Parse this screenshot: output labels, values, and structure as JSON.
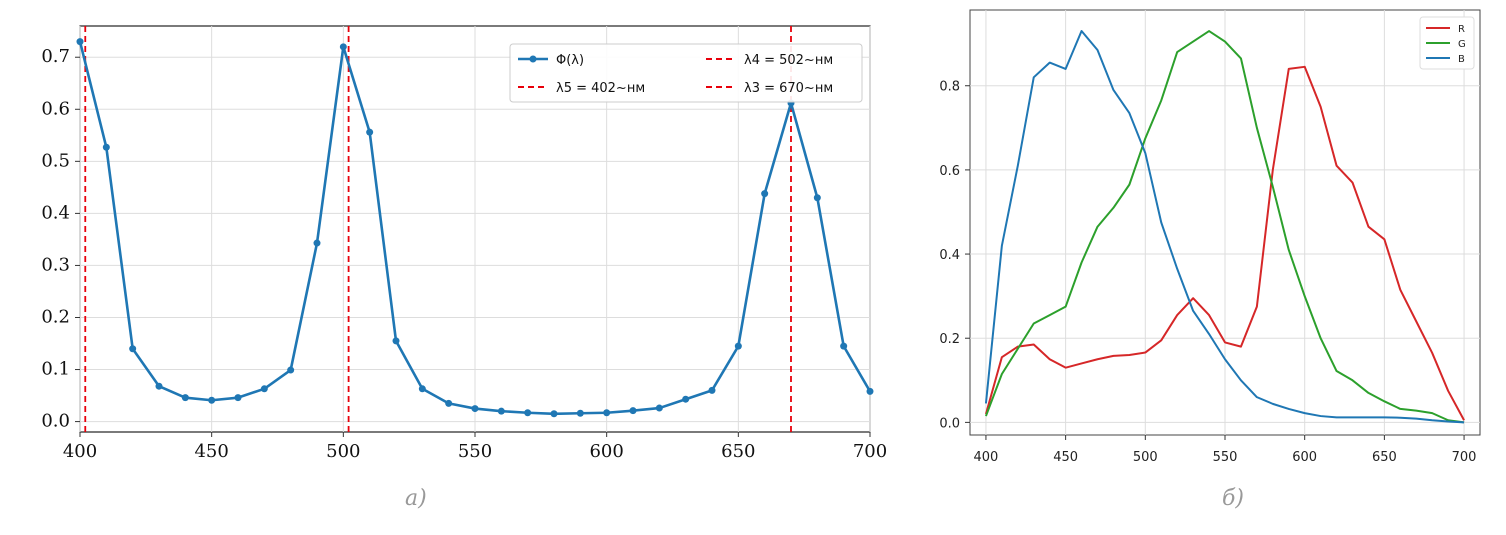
{
  "chart_data": [
    {
      "type": "line",
      "caption": "а)",
      "xlim": [
        400,
        700
      ],
      "ylim": [
        -0.02,
        0.76
      ],
      "x_ticks": [
        400,
        450,
        500,
        550,
        600,
        650,
        700
      ],
      "y_ticks": [
        0.0,
        0.1,
        0.2,
        0.3,
        0.4,
        0.5,
        0.6,
        0.7
      ],
      "grid": true,
      "legend_position": "top-right",
      "series": [
        {
          "name": "Φ(λ)",
          "color": "#1f77b4",
          "x": [
            400,
            410,
            420,
            430,
            440,
            450,
            460,
            470,
            480,
            490,
            500,
            510,
            520,
            530,
            540,
            550,
            560,
            570,
            580,
            590,
            600,
            610,
            620,
            630,
            640,
            650,
            660,
            670,
            680,
            690,
            700
          ],
          "y": [
            0.73,
            0.527,
            0.14,
            0.068,
            0.046,
            0.041,
            0.046,
            0.063,
            0.099,
            0.343,
            0.72,
            0.556,
            0.155,
            0.063,
            0.035,
            0.025,
            0.02,
            0.017,
            0.015,
            0.016,
            0.017,
            0.021,
            0.026,
            0.043,
            0.06,
            0.145,
            0.438,
            0.612,
            0.43,
            0.145,
            0.058
          ]
        }
      ],
      "vlines": [
        {
          "x": 402,
          "label": "λ5 = 402~нм",
          "color": "#e8000b"
        },
        {
          "x": 502,
          "label": "λ4 = 502~нм",
          "color": "#e8000b"
        },
        {
          "x": 670,
          "label": "λ3 = 670~нм",
          "color": "#e8000b"
        }
      ]
    },
    {
      "type": "line",
      "caption": "б)",
      "xlim": [
        390,
        710
      ],
      "ylim": [
        -0.03,
        0.98
      ],
      "x_ticks": [
        400,
        450,
        500,
        550,
        600,
        650,
        700
      ],
      "y_ticks": [
        0.0,
        0.2,
        0.4,
        0.6,
        0.8
      ],
      "grid": true,
      "legend_position": "top-right",
      "series": [
        {
          "name": "R",
          "color": "#d62728",
          "x": [
            400,
            410,
            420,
            430,
            440,
            450,
            460,
            470,
            480,
            490,
            500,
            510,
            520,
            530,
            540,
            550,
            560,
            570,
            580,
            590,
            600,
            610,
            620,
            630,
            640,
            650,
            660,
            670,
            680,
            690,
            700
          ],
          "y": [
            0.02,
            0.155,
            0.18,
            0.185,
            0.15,
            0.13,
            0.14,
            0.15,
            0.158,
            0.16,
            0.166,
            0.195,
            0.255,
            0.295,
            0.255,
            0.19,
            0.18,
            0.275,
            0.6,
            0.84,
            0.845,
            0.75,
            0.61,
            0.57,
            0.465,
            0.435,
            0.315,
            0.24,
            0.165,
            0.075,
            0.005
          ]
        },
        {
          "name": "G",
          "color": "#2ca02c",
          "x": [
            400,
            410,
            420,
            430,
            440,
            450,
            460,
            470,
            480,
            490,
            500,
            510,
            520,
            530,
            540,
            550,
            560,
            570,
            580,
            590,
            600,
            610,
            620,
            630,
            640,
            650,
            660,
            670,
            680,
            690,
            700
          ],
          "y": [
            0.015,
            0.115,
            0.175,
            0.235,
            0.255,
            0.275,
            0.38,
            0.465,
            0.51,
            0.565,
            0.675,
            0.765,
            0.88,
            0.905,
            0.93,
            0.905,
            0.865,
            0.7,
            0.56,
            0.41,
            0.3,
            0.2,
            0.122,
            0.1,
            0.07,
            0.05,
            0.032,
            0.028,
            0.022,
            0.005,
            0.0
          ]
        },
        {
          "name": "B",
          "color": "#1f77b4",
          "x": [
            400,
            410,
            420,
            430,
            440,
            450,
            460,
            470,
            480,
            490,
            500,
            510,
            520,
            530,
            540,
            550,
            560,
            570,
            580,
            590,
            600,
            610,
            620,
            630,
            640,
            650,
            660,
            670,
            680,
            690,
            700
          ],
          "y": [
            0.045,
            0.42,
            0.61,
            0.82,
            0.855,
            0.84,
            0.93,
            0.885,
            0.79,
            0.735,
            0.64,
            0.475,
            0.365,
            0.265,
            0.21,
            0.15,
            0.1,
            0.06,
            0.044,
            0.032,
            0.022,
            0.015,
            0.012,
            0.012,
            0.012,
            0.012,
            0.011,
            0.009,
            0.005,
            0.002,
            0.0
          ]
        }
      ]
    }
  ]
}
